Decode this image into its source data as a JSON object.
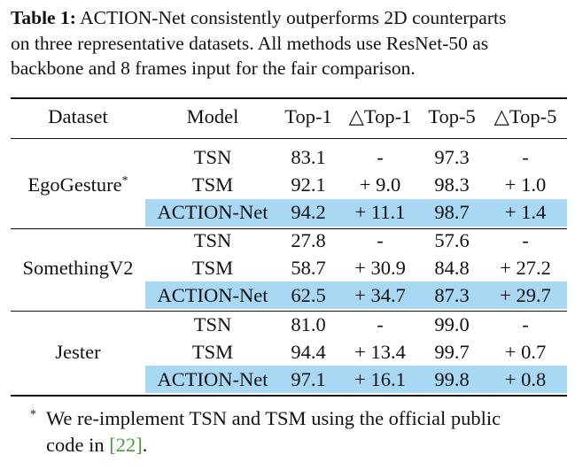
{
  "caption": {
    "label": "Table 1:",
    "line1": "ACTION-Net consistently outperforms 2D counterparts",
    "line2": "on three representative datasets.  All methods use ResNet-50 as",
    "line3": "backbone and 8 frames input for the fair comparison."
  },
  "table": {
    "headers": [
      "Dataset",
      "Model",
      "Top-1",
      "△Top-1",
      "Top-5",
      "△Top-5"
    ],
    "groups": [
      {
        "dataset": "EgoGesture",
        "dataset_mark": "*",
        "rows": [
          {
            "model": "TSN",
            "top1": "83.1",
            "dtop1": "-",
            "top5": "97.3",
            "dtop5": "-"
          },
          {
            "model": "TSM",
            "top1": "92.1",
            "dtop1": "+ 9.0",
            "top5": "98.3",
            "dtop5": "+ 1.0"
          },
          {
            "model": "ACTION-Net",
            "top1": "94.2",
            "dtop1": "+ 11.1",
            "top5": "98.7",
            "dtop5": "+ 1.4"
          }
        ]
      },
      {
        "dataset": "SomethingV2",
        "dataset_mark": "",
        "rows": [
          {
            "model": "TSN",
            "top1": "27.8",
            "dtop1": "-",
            "top5": "57.6",
            "dtop5": "-"
          },
          {
            "model": "TSM",
            "top1": "58.7",
            "dtop1": "+ 30.9",
            "top5": "84.8",
            "dtop5": "+ 27.2"
          },
          {
            "model": "ACTION-Net",
            "top1": "62.5",
            "dtop1": "+ 34.7",
            "top5": "87.3",
            "dtop5": "+ 29.7"
          }
        ]
      },
      {
        "dataset": "Jester",
        "dataset_mark": "",
        "rows": [
          {
            "model": "TSN",
            "top1": "81.0",
            "dtop1": "-",
            "top5": "99.0",
            "dtop5": "-"
          },
          {
            "model": "TSM",
            "top1": "94.4",
            "dtop1": "+ 13.4",
            "top5": "99.7",
            "dtop5": "+ 0.7"
          },
          {
            "model": "ACTION-Net",
            "top1": "97.1",
            "dtop1": "+ 16.1",
            "top5": "99.8",
            "dtop5": "+ 0.8"
          }
        ]
      }
    ],
    "highlight_color": "#a9d8f5"
  },
  "footnote": {
    "mark": "*",
    "line1": "We re-implement TSN and TSM using the official public",
    "line2_prefix": "code in ",
    "ref": "[22]",
    "line2_suffix": ".",
    "ref_color": "#4a9a3a"
  }
}
